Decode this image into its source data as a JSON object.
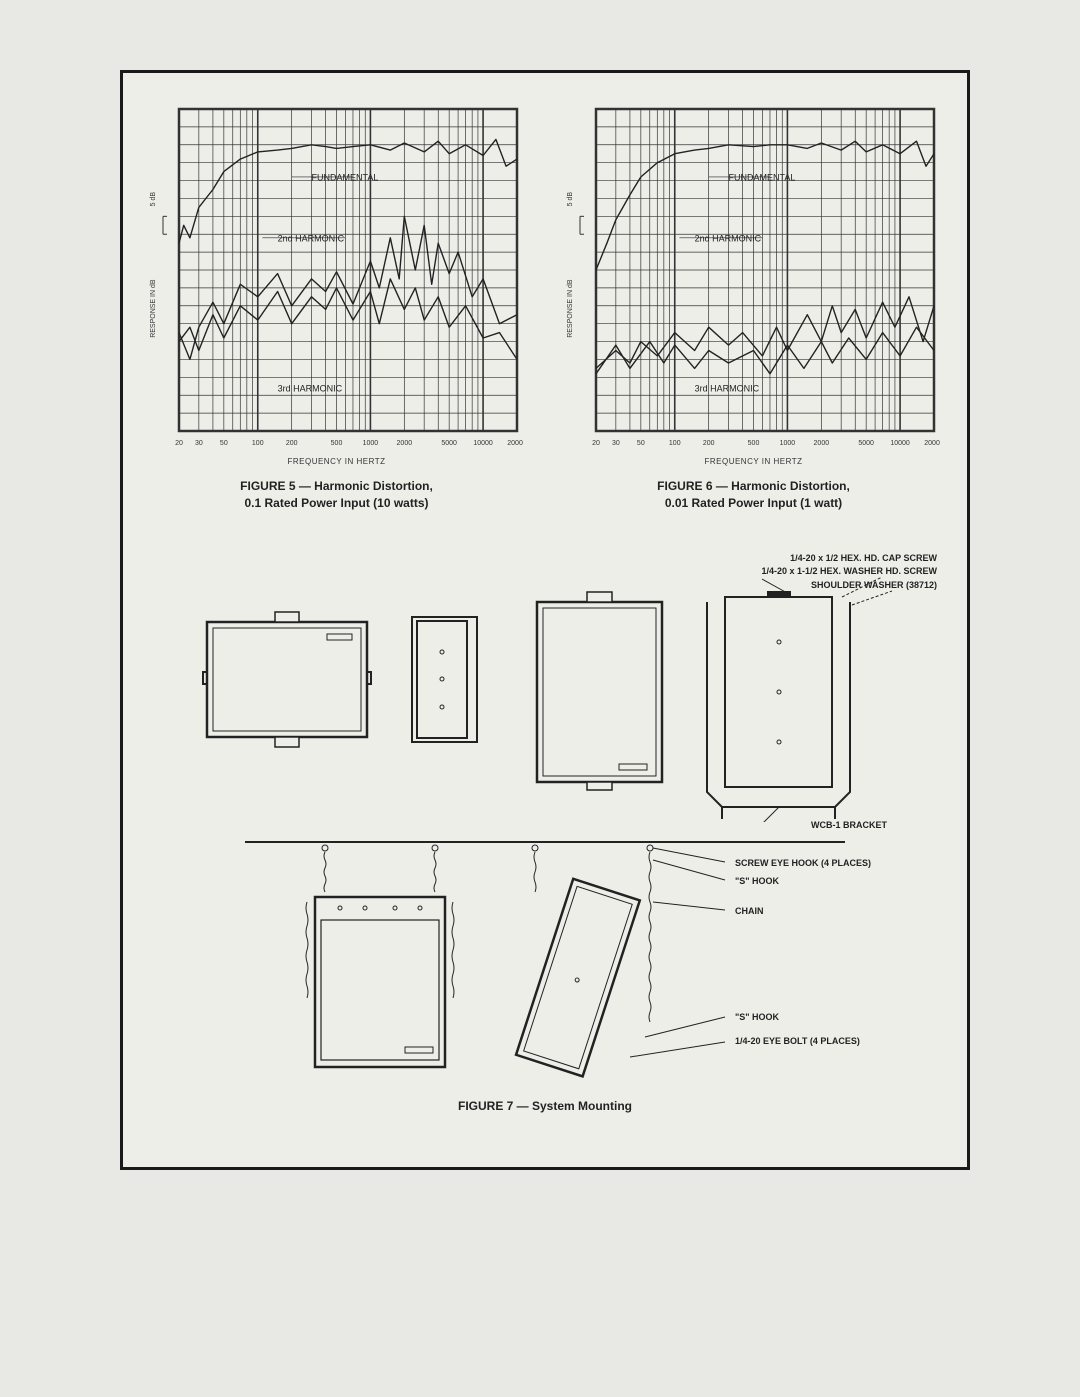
{
  "page": {
    "background": "#e8e8e4",
    "paper_bg": "#eeeee9",
    "border_color": "#1a1a1a",
    "line_color": "#222222"
  },
  "fig5": {
    "caption_line1": "FIGURE 5 — Harmonic Distortion,",
    "caption_line2": "0.1 Rated Power Input (10 watts)",
    "xlabel": "FREQUENCY IN HERTZ",
    "ylabel": "RESPONSE IN dB",
    "ysublabel": "5 dB",
    "type": "line-log-x",
    "xlim": [
      20,
      20000
    ],
    "ylim_rows": 18,
    "xticks": [
      20,
      30,
      50,
      100,
      200,
      500,
      1000,
      2000,
      5000,
      10000,
      20000
    ],
    "grid_color": "#333333",
    "curve_labels": {
      "fundamental": "FUNDAMENTAL",
      "second": "2nd HARMONIC",
      "third": "3rd HARMONIC"
    },
    "curves": {
      "fundamental": [
        [
          20,
          10.5
        ],
        [
          22,
          11.5
        ],
        [
          25,
          10.8
        ],
        [
          30,
          12.5
        ],
        [
          40,
          13.5
        ],
        [
          50,
          14.5
        ],
        [
          70,
          15.2
        ],
        [
          100,
          15.6
        ],
        [
          150,
          15.7
        ],
        [
          200,
          15.8
        ],
        [
          300,
          16.0
        ],
        [
          400,
          15.9
        ],
        [
          500,
          15.8
        ],
        [
          700,
          15.9
        ],
        [
          1000,
          16.0
        ],
        [
          1500,
          15.7
        ],
        [
          2000,
          16.1
        ],
        [
          3000,
          15.6
        ],
        [
          4000,
          16.2
        ],
        [
          5000,
          15.5
        ],
        [
          7000,
          16.0
        ],
        [
          10000,
          15.4
        ],
        [
          13000,
          16.3
        ],
        [
          16000,
          14.8
        ],
        [
          20000,
          15.2
        ]
      ],
      "second": [
        [
          20,
          5.5
        ],
        [
          25,
          4.0
        ],
        [
          30,
          5.8
        ],
        [
          40,
          7.2
        ],
        [
          50,
          6.0
        ],
        [
          70,
          8.2
        ],
        [
          100,
          7.5
        ],
        [
          150,
          8.8
        ],
        [
          200,
          7.0
        ],
        [
          300,
          8.5
        ],
        [
          400,
          7.8
        ],
        [
          500,
          8.9
        ],
        [
          700,
          7.1
        ],
        [
          1000,
          9.5
        ],
        [
          1200,
          8.0
        ],
        [
          1500,
          10.8
        ],
        [
          1800,
          8.5
        ],
        [
          2000,
          12.0
        ],
        [
          2500,
          9.0
        ],
        [
          3000,
          11.5
        ],
        [
          3500,
          8.2
        ],
        [
          4000,
          10.5
        ],
        [
          5000,
          8.8
        ],
        [
          6000,
          10.0
        ],
        [
          8000,
          7.5
        ],
        [
          10000,
          8.5
        ],
        [
          14000,
          6.0
        ],
        [
          20000,
          6.5
        ]
      ],
      "third": [
        [
          20,
          5.0
        ],
        [
          25,
          5.8
        ],
        [
          30,
          4.5
        ],
        [
          40,
          6.5
        ],
        [
          50,
          5.2
        ],
        [
          70,
          7.0
        ],
        [
          100,
          6.2
        ],
        [
          150,
          7.8
        ],
        [
          200,
          6.0
        ],
        [
          300,
          7.5
        ],
        [
          400,
          6.8
        ],
        [
          500,
          8.0
        ],
        [
          700,
          6.2
        ],
        [
          1000,
          7.8
        ],
        [
          1200,
          6.0
        ],
        [
          1500,
          8.5
        ],
        [
          2000,
          6.8
        ],
        [
          2500,
          8.0
        ],
        [
          3000,
          6.2
        ],
        [
          4000,
          7.5
        ],
        [
          5000,
          5.8
        ],
        [
          7000,
          7.0
        ],
        [
          10000,
          5.2
        ],
        [
          14000,
          5.5
        ],
        [
          20000,
          4.0
        ]
      ]
    }
  },
  "fig6": {
    "caption_line1": "FIGURE 6 — Harmonic Distortion,",
    "caption_line2": "0.01 Rated Power Input (1 watt)",
    "xlabel": "FREQUENCY IN HERTZ",
    "ylabel": "RESPONSE IN dB",
    "ysublabel": "5 dB",
    "type": "line-log-x",
    "xlim": [
      20,
      20000
    ],
    "ylim_rows": 18,
    "xticks": [
      20,
      30,
      50,
      100,
      200,
      500,
      1000,
      2000,
      5000,
      10000,
      20000
    ],
    "grid_color": "#333333",
    "curve_labels": {
      "fundamental": "FUNDAMENTAL",
      "second": "2nd HARMONIC",
      "third": "3rd HARMONIC"
    },
    "curves": {
      "fundamental": [
        [
          20,
          9.0
        ],
        [
          25,
          10.5
        ],
        [
          30,
          11.8
        ],
        [
          40,
          13.2
        ],
        [
          50,
          14.2
        ],
        [
          70,
          15.0
        ],
        [
          100,
          15.5
        ],
        [
          150,
          15.7
        ],
        [
          200,
          15.8
        ],
        [
          300,
          16.0
        ],
        [
          500,
          15.9
        ],
        [
          700,
          16.0
        ],
        [
          1000,
          16.0
        ],
        [
          1500,
          15.8
        ],
        [
          2000,
          16.1
        ],
        [
          3000,
          15.7
        ],
        [
          4000,
          16.2
        ],
        [
          5000,
          15.6
        ],
        [
          7000,
          16.0
        ],
        [
          10000,
          15.5
        ],
        [
          14000,
          16.2
        ],
        [
          17000,
          14.8
        ],
        [
          20000,
          15.5
        ]
      ],
      "second": [
        [
          20,
          3.5
        ],
        [
          30,
          4.5
        ],
        [
          40,
          3.8
        ],
        [
          50,
          5.0
        ],
        [
          70,
          4.2
        ],
        [
          100,
          5.5
        ],
        [
          150,
          4.5
        ],
        [
          200,
          5.8
        ],
        [
          300,
          4.8
        ],
        [
          400,
          5.5
        ],
        [
          600,
          4.2
        ],
        [
          800,
          5.8
        ],
        [
          1000,
          4.5
        ],
        [
          1500,
          6.5
        ],
        [
          2000,
          5.0
        ],
        [
          2500,
          7.0
        ],
        [
          3000,
          5.5
        ],
        [
          4000,
          6.8
        ],
        [
          5000,
          5.2
        ],
        [
          7000,
          7.2
        ],
        [
          9000,
          5.8
        ],
        [
          12000,
          7.5
        ],
        [
          16000,
          5.0
        ],
        [
          20000,
          7.0
        ]
      ],
      "third": [
        [
          20,
          3.2
        ],
        [
          30,
          4.8
        ],
        [
          40,
          3.5
        ],
        [
          60,
          5.0
        ],
        [
          80,
          3.8
        ],
        [
          100,
          4.8
        ],
        [
          150,
          3.5
        ],
        [
          200,
          4.5
        ],
        [
          300,
          3.8
        ],
        [
          500,
          4.5
        ],
        [
          700,
          3.2
        ],
        [
          1000,
          4.8
        ],
        [
          1400,
          3.5
        ],
        [
          2000,
          5.0
        ],
        [
          2500,
          3.8
        ],
        [
          3500,
          5.2
        ],
        [
          5000,
          4.0
        ],
        [
          7000,
          5.5
        ],
        [
          10000,
          4.2
        ],
        [
          14000,
          5.8
        ],
        [
          20000,
          4.5
        ]
      ]
    }
  },
  "fig7": {
    "caption": "FIGURE 7 — System Mounting",
    "callouts": {
      "cap_screw": "1/4-20 x 1/2 HEX. HD. CAP SCREW",
      "washer_screw": "1/4-20 x 1-1/2 HEX. WASHER HD. SCREW",
      "shoulder_washer": "SHOULDER WASHER (38712)",
      "bracket": "WCB-1 BRACKET",
      "eye_hook": "SCREW EYE HOOK (4 PLACES)",
      "s_hook": "\"S\" HOOK",
      "chain": "CHAIN",
      "s_hook2": "\"S\" HOOK",
      "eye_bolt": "1/4-20 EYE BOLT (4 PLACES)"
    }
  }
}
